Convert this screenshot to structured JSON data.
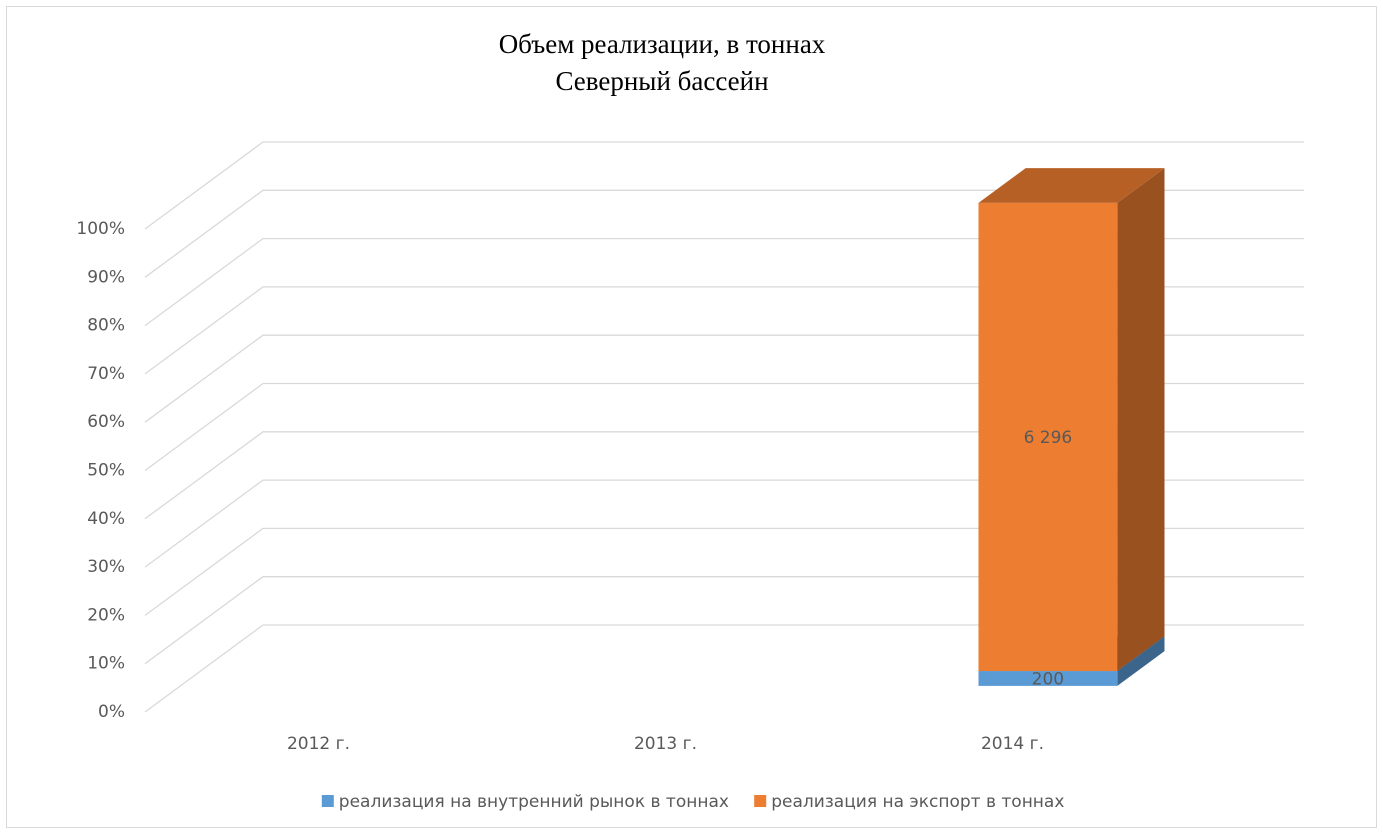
{
  "chart_data": {
    "type": "bar",
    "stacking": "percent",
    "depth": "3d",
    "title": "Объем реализации, в тоннах",
    "subtitle": "Северный бассейн",
    "categories": [
      "2012 г.",
      "2013 г.",
      "2014 г."
    ],
    "series": [
      {
        "name": "реализация на внутренний рынок в тоннах",
        "color": "#5b9bd5",
        "values": [
          null,
          null,
          200
        ]
      },
      {
        "name": "реализация на экспорт в тоннах",
        "color": "#ed7d31",
        "values": [
          null,
          null,
          6296
        ],
        "value_labels": [
          null,
          null,
          "6 296"
        ]
      }
    ],
    "ylim": [
      0,
      100
    ],
    "yticks": [
      {
        "value": 0,
        "label": "0%"
      },
      {
        "value": 10,
        "label": "10%"
      },
      {
        "value": 20,
        "label": "20%"
      },
      {
        "value": 30,
        "label": "30%"
      },
      {
        "value": 40,
        "label": "40%"
      },
      {
        "value": 50,
        "label": "50%"
      },
      {
        "value": 60,
        "label": "60%"
      },
      {
        "value": 70,
        "label": "70%"
      },
      {
        "value": 80,
        "label": "80%"
      },
      {
        "value": 90,
        "label": "90%"
      },
      {
        "value": 100,
        "label": "100%"
      }
    ],
    "grid": true,
    "legend": "bottom"
  }
}
